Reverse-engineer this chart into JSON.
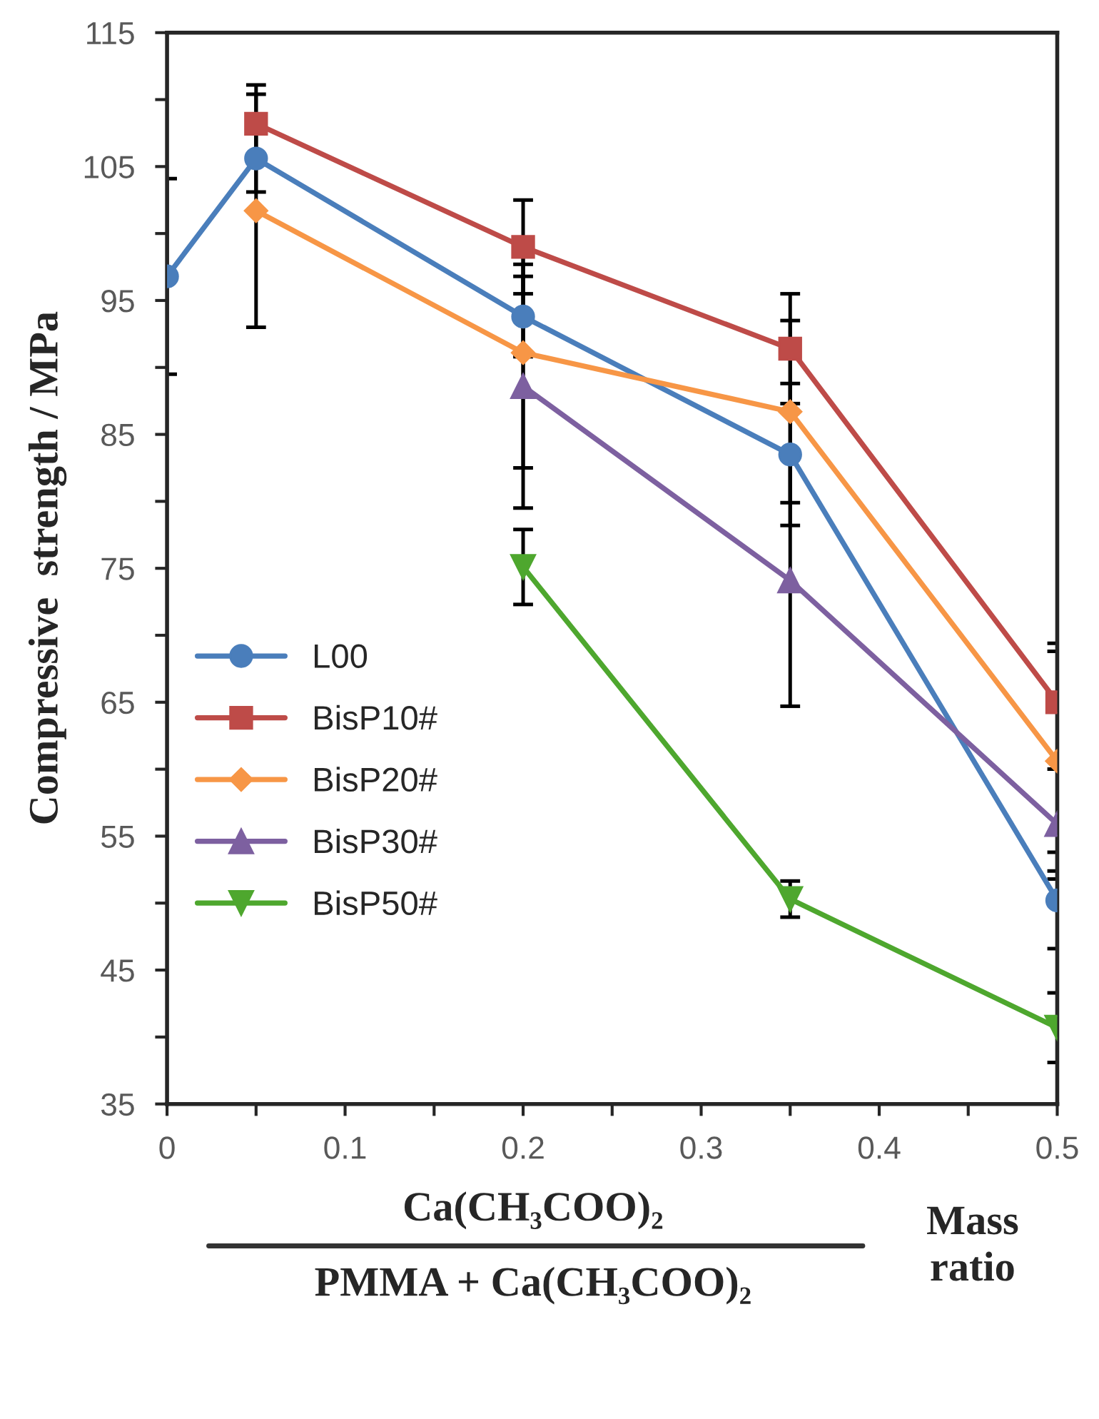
{
  "chart_data": {
    "type": "line",
    "ylabel": "Compressive  strength / MPa",
    "xlabel": "Ca(CH₃COO)₂\nPMMA + Ca(CH₃COO)₂",
    "annotations": [
      "Mass\nratio"
    ],
    "xlim": [
      0,
      0.5
    ],
    "ylim": [
      35,
      115
    ],
    "xticks": [
      0,
      {
        "value": 0.05,
        "label": null
      },
      0.1,
      {
        "value": 0.15,
        "label": null
      },
      0.2,
      {
        "value": 0.25,
        "label": null
      },
      0.3,
      {
        "value": 0.35,
        "label": null
      },
      0.4,
      {
        "value": 0.45,
        "label": null
      },
      0.5
    ],
    "yticks": [
      35,
      {
        "value": 40,
        "label": null
      },
      45,
      {
        "value": 50,
        "label": null
      },
      55,
      {
        "value": 60,
        "label": null
      },
      65,
      {
        "value": 70,
        "label": null
      },
      75,
      {
        "value": 80,
        "label": null
      },
      85,
      {
        "value": 90,
        "label": null
      },
      95,
      {
        "value": 100,
        "label": null
      },
      105,
      {
        "value": 110,
        "label": null
      },
      115
    ],
    "grid": false,
    "legend": "left",
    "line_style": "solid",
    "series": [
      {
        "name": "L00",
        "color": "#4a7ebb",
        "marker": "circle",
        "x": [
          0,
          0.05,
          0.2,
          0.35,
          0.5
        ],
        "values": [
          96.8,
          105.6,
          93.8,
          83.5,
          50.2
        ],
        "errors": [
          7.3,
          2.5,
          3.0,
          5.3,
          3.6
        ]
      },
      {
        "name": "BisP10#",
        "color": "#be4b48",
        "marker": "square",
        "x": [
          0.05,
          0.2,
          0.35,
          0.5
        ],
        "values": [
          108.2,
          99.0,
          91.4,
          65.0
        ],
        "errors": [
          2.9,
          3.5,
          4.1,
          4.4
        ]
      },
      {
        "name": "BisP20#",
        "color": "#f79646",
        "marker": "diamond",
        "x": [
          0.05,
          0.2,
          0.35,
          0.5
        ],
        "values": [
          101.7,
          91.1,
          86.7,
          60.6
        ],
        "errors": [
          8.7,
          8.6,
          6.8,
          8.2
        ]
      },
      {
        "name": "BisP30#",
        "color": "#7d60a0",
        "marker": "triangle",
        "x": [
          0.2,
          0.35,
          0.5
        ],
        "values": [
          88.6,
          74.1,
          55.9
        ],
        "errors": [
          9.1,
          9.4,
          4.1
        ]
      },
      {
        "name": "BisP50#",
        "color": "#4ea72e",
        "marker": "triangle_down",
        "x": [
          0.2,
          0.35,
          0.5
        ],
        "values": [
          75.1,
          50.3,
          40.7
        ],
        "errors": [
          2.8,
          1.35,
          2.6
        ]
      }
    ]
  }
}
